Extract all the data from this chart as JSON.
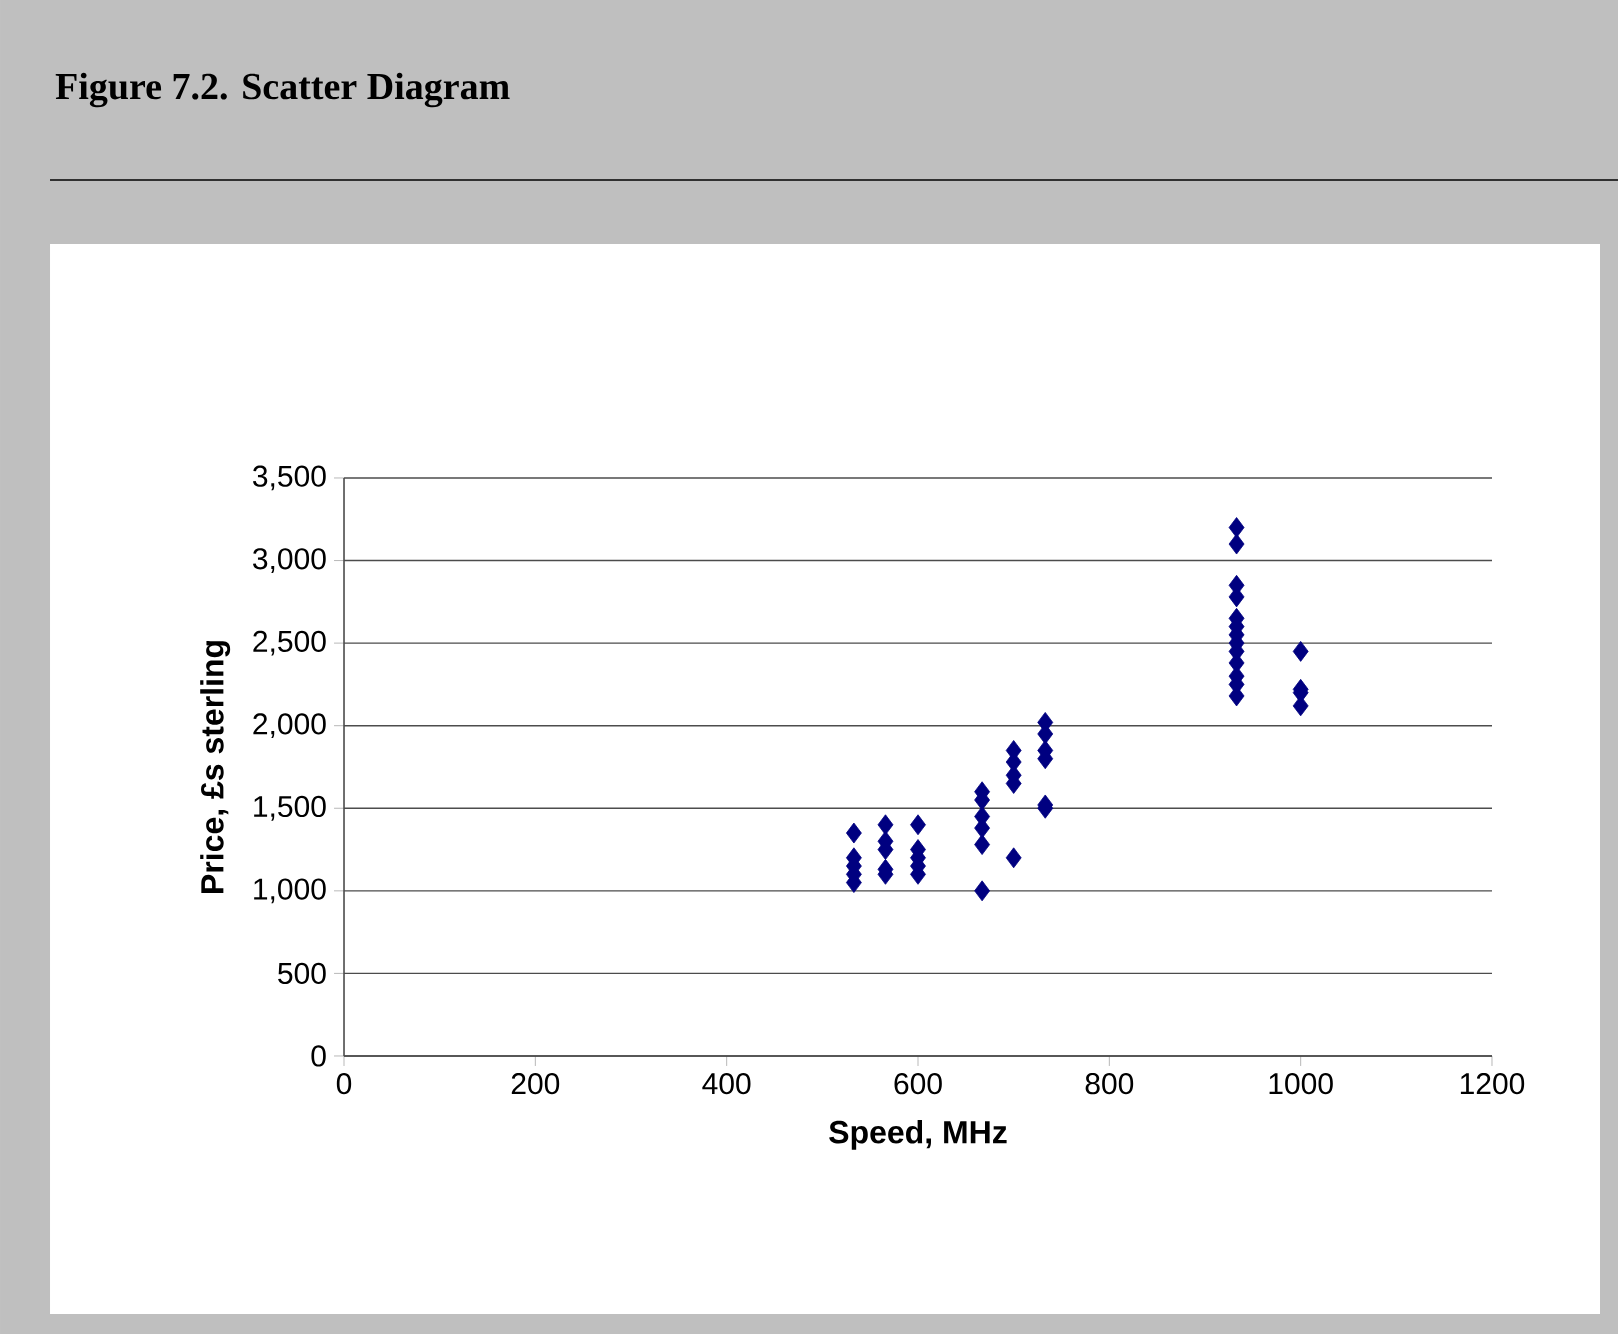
{
  "chart_data": {
    "type": "scatter",
    "title": "Figure 7.2. Scatter Diagram",
    "xlabel": "Speed, MHz",
    "ylabel": "Price, £s sterling",
    "x": [
      533,
      533,
      533,
      533,
      533,
      566,
      566,
      566,
      566,
      566,
      600,
      600,
      600,
      600,
      600,
      667,
      667,
      667,
      667,
      667,
      667,
      700,
      700,
      700,
      700,
      700,
      733,
      733,
      733,
      733,
      733,
      733,
      933,
      933,
      933,
      933,
      933,
      933,
      933,
      933,
      933,
      933,
      933,
      933,
      933,
      1000,
      1000,
      1000,
      1000
    ],
    "series": [
      {
        "color": "#000080",
        "values": [
          1050,
          1100,
          1150,
          1200,
          1350,
          1100,
          1130,
          1250,
          1300,
          1400,
          1100,
          1150,
          1200,
          1250,
          1400,
          1000,
          1280,
          1380,
          1450,
          1550,
          1600,
          1200,
          1650,
          1700,
          1780,
          1850,
          1500,
          1520,
          1800,
          1850,
          1950,
          2020,
          2180,
          2250,
          2300,
          2380,
          2450,
          2500,
          2550,
          2600,
          2650,
          2780,
          2850,
          3100,
          3200,
          2120,
          2200,
          2220,
          2450
        ]
      }
    ],
    "marker": "diamond",
    "grid": "y",
    "xlim": [
      0,
      1200
    ],
    "xticks": [
      0,
      200,
      400,
      600,
      800,
      1000,
      1200
    ],
    "ylim": [
      0,
      3500
    ],
    "yticks": [
      0,
      500,
      {
        "value": 1000,
        "label": "1,000"
      },
      {
        "value": 1500,
        "label": "1,500"
      },
      {
        "value": 2000,
        "label": "2,000"
      },
      {
        "value": 2500,
        "label": "2,500"
      },
      {
        "value": 3000,
        "label": "3,000"
      },
      {
        "value": 3500,
        "label": "3,500"
      }
    ]
  }
}
